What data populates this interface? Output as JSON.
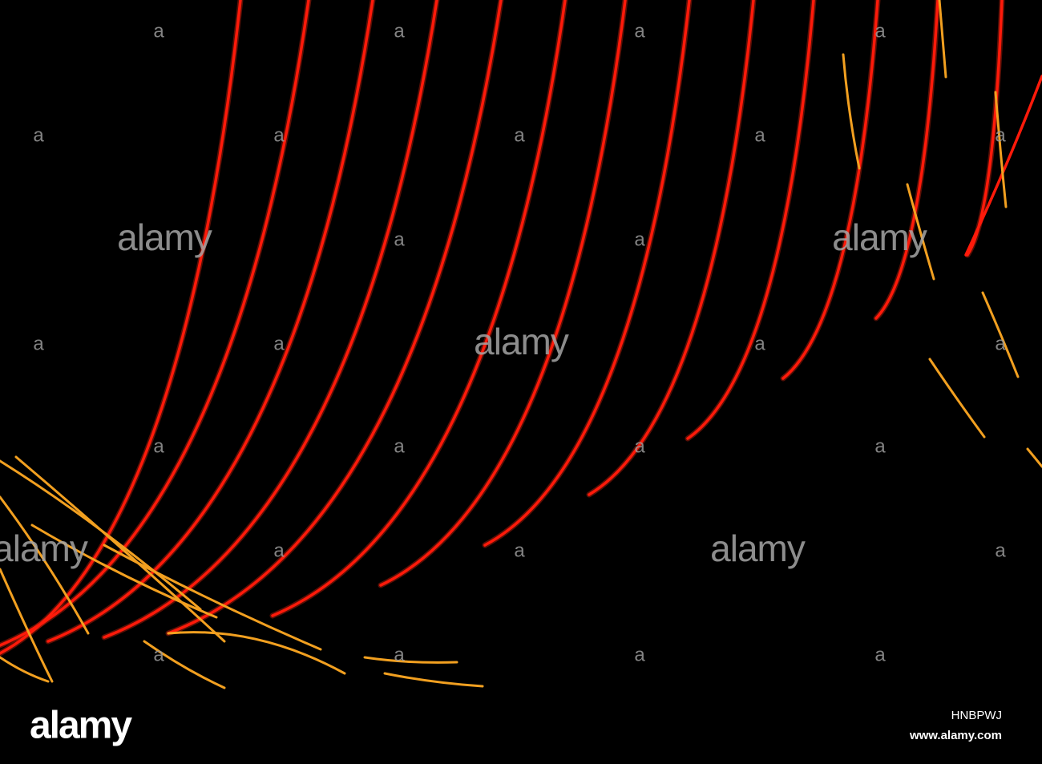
{
  "watermark_small": "a",
  "watermark_large": "alamy",
  "logo": "alamy",
  "image_id": "HNBPWJ",
  "url": "www.alamy.com"
}
